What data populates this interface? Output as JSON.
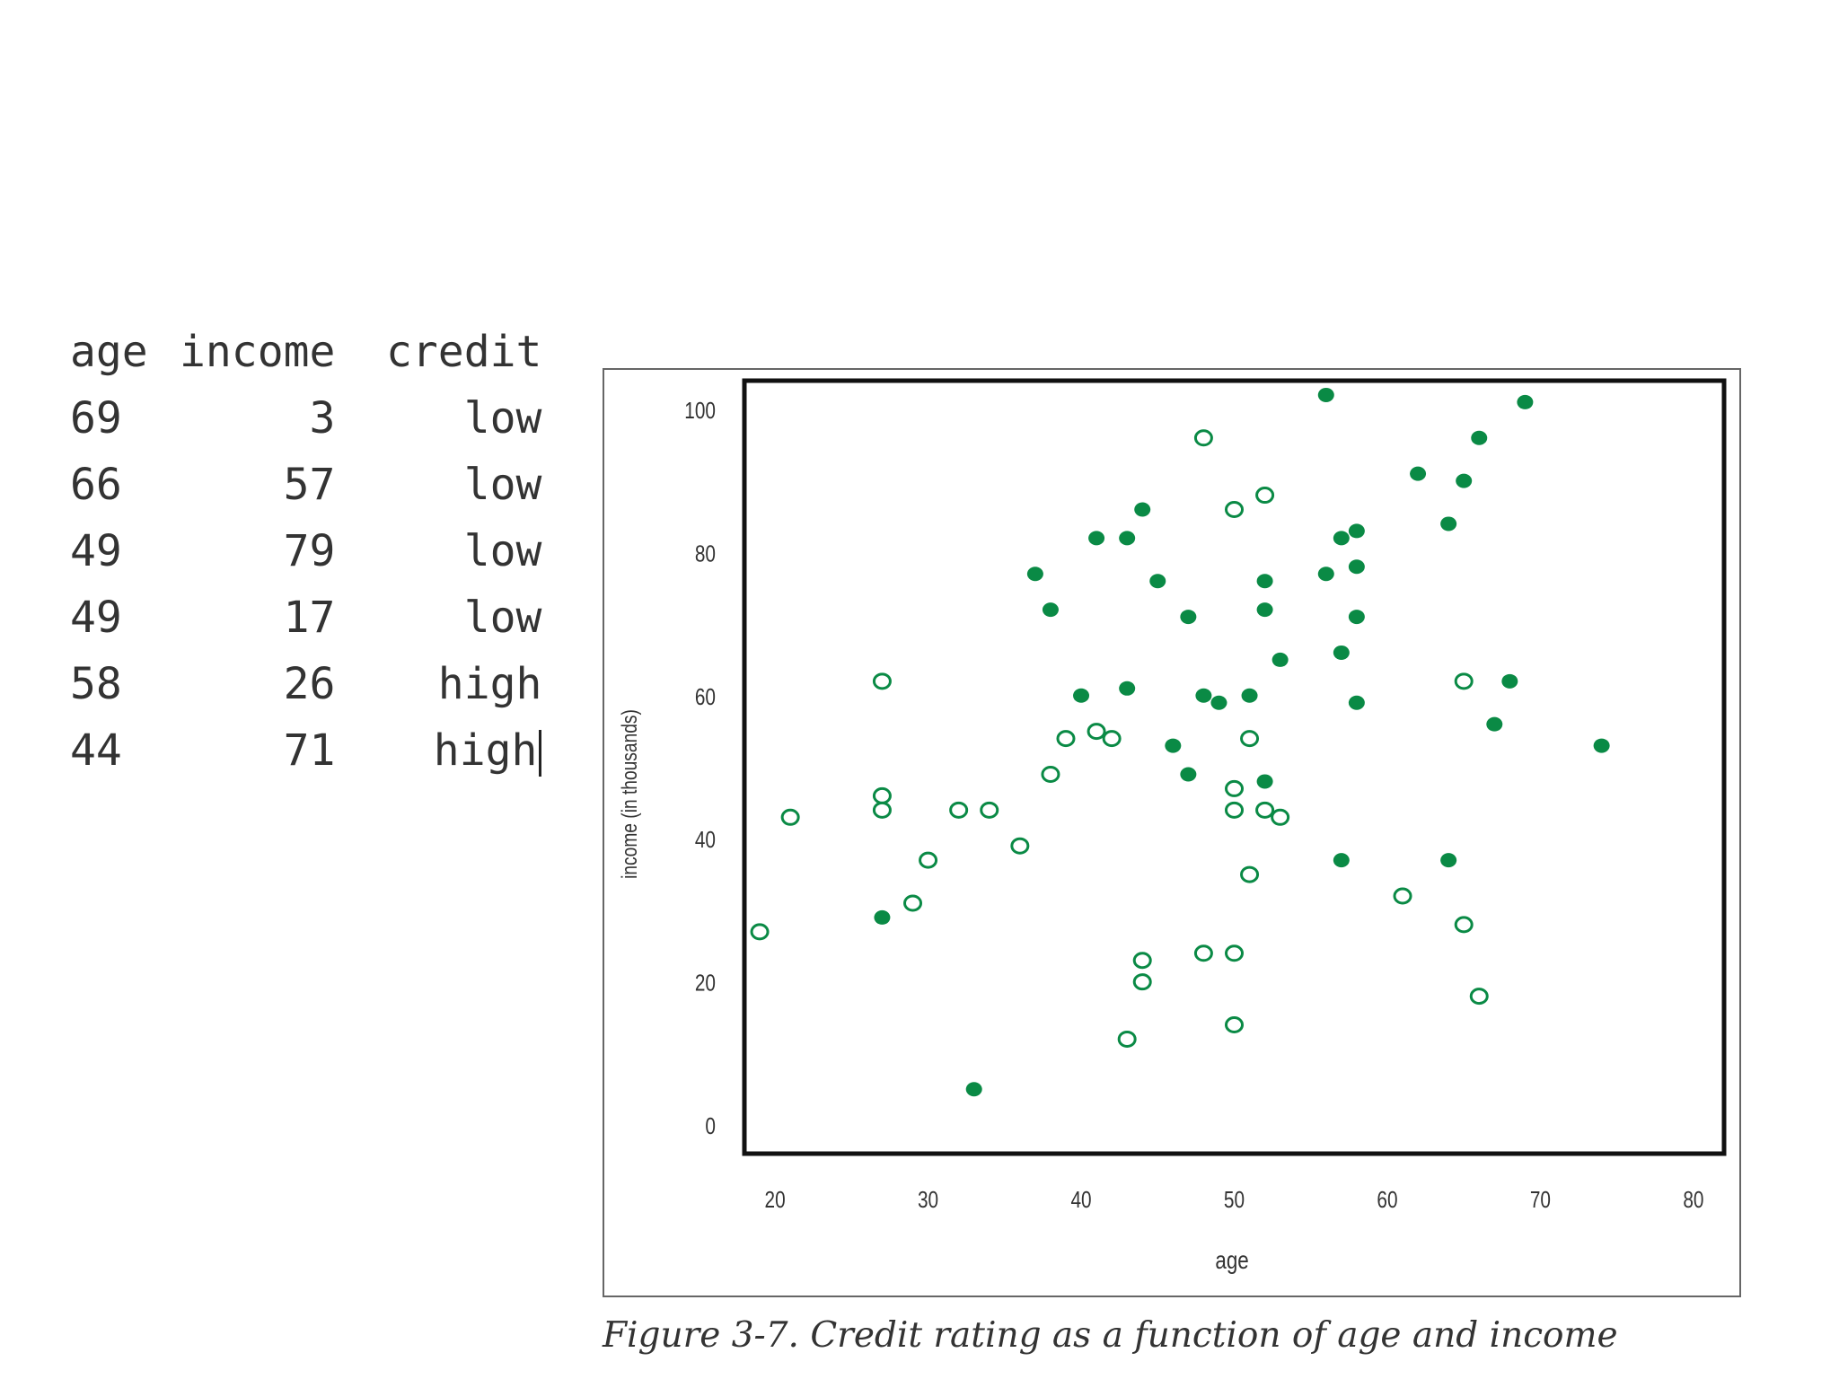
{
  "table": {
    "headers": [
      "age",
      "income",
      "credit"
    ],
    "rows": [
      [
        "69",
        "3",
        "low"
      ],
      [
        "66",
        "57",
        "low"
      ],
      [
        "49",
        "79",
        "low"
      ],
      [
        "49",
        "17",
        "low"
      ],
      [
        "58",
        "26",
        "high"
      ],
      [
        "44",
        "71",
        "high"
      ]
    ]
  },
  "caption": "Figure 3-7. Credit rating as a function of age and income",
  "colors": {
    "marker": "#0a8a45",
    "text": "#333333"
  },
  "chart_data": {
    "type": "scatter",
    "xlabel": "age",
    "ylabel": "income (in thousands)",
    "xlim": [
      18,
      82
    ],
    "ylim": [
      -4,
      104
    ],
    "xticks": [
      20,
      30,
      40,
      50,
      60,
      70,
      80
    ],
    "yticks": [
      0,
      20,
      40,
      60,
      80,
      100
    ],
    "grid": false,
    "series": [
      {
        "marker": "filled",
        "points": [
          [
            56,
            102
          ],
          [
            69,
            101
          ],
          [
            66,
            96
          ],
          [
            62,
            91
          ],
          [
            65,
            90
          ],
          [
            64,
            84
          ],
          [
            44,
            86
          ],
          [
            57,
            82
          ],
          [
            58,
            83
          ],
          [
            41,
            82
          ],
          [
            43,
            82
          ],
          [
            37,
            77
          ],
          [
            56,
            77
          ],
          [
            58,
            78
          ],
          [
            45,
            76
          ],
          [
            52,
            76
          ],
          [
            38,
            72
          ],
          [
            47,
            71
          ],
          [
            52,
            72
          ],
          [
            58,
            71
          ],
          [
            57,
            66
          ],
          [
            53,
            65
          ],
          [
            40,
            60
          ],
          [
            43,
            61
          ],
          [
            48,
            60
          ],
          [
            49,
            59
          ],
          [
            51,
            60
          ],
          [
            58,
            59
          ],
          [
            68,
            62
          ],
          [
            67,
            56
          ],
          [
            46,
            53
          ],
          [
            74,
            53
          ],
          [
            47,
            49
          ],
          [
            52,
            48
          ],
          [
            57,
            37
          ],
          [
            64,
            37
          ],
          [
            27,
            29
          ],
          [
            33,
            5
          ]
        ]
      },
      {
        "marker": "hollow",
        "points": [
          [
            48,
            96
          ],
          [
            52,
            88
          ],
          [
            50,
            86
          ],
          [
            27,
            62
          ],
          [
            65,
            62
          ],
          [
            41,
            55
          ],
          [
            39,
            54
          ],
          [
            42,
            54
          ],
          [
            51,
            54
          ],
          [
            38,
            49
          ],
          [
            27,
            46
          ],
          [
            27,
            44
          ],
          [
            21,
            43
          ],
          [
            32,
            44
          ],
          [
            34,
            44
          ],
          [
            50,
            47
          ],
          [
            50,
            44
          ],
          [
            52,
            44
          ],
          [
            53,
            43
          ],
          [
            36,
            39
          ],
          [
            30,
            37
          ],
          [
            51,
            35
          ],
          [
            29,
            31
          ],
          [
            61,
            32
          ],
          [
            19,
            27
          ],
          [
            65,
            28
          ],
          [
            44,
            23
          ],
          [
            48,
            24
          ],
          [
            50,
            24
          ],
          [
            44,
            20
          ],
          [
            66,
            18
          ],
          [
            50,
            14
          ],
          [
            43,
            12
          ]
        ]
      }
    ]
  }
}
